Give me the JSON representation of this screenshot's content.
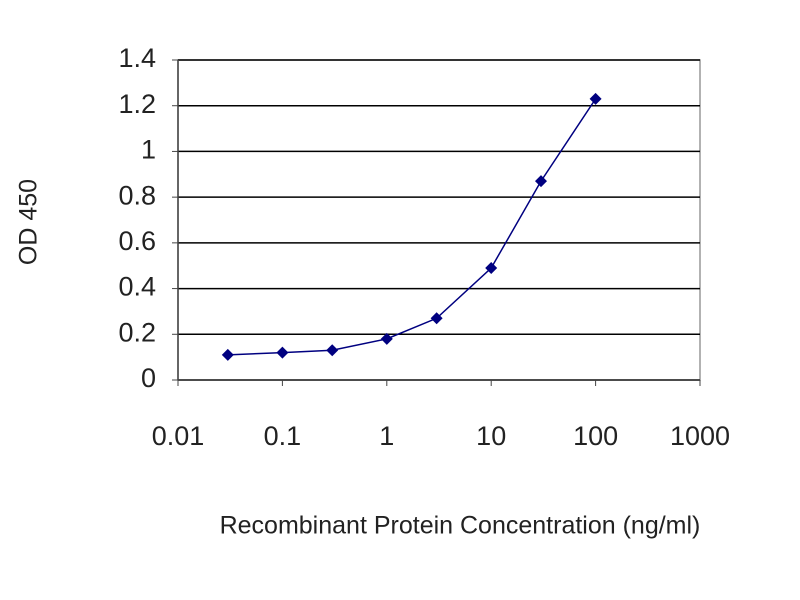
{
  "chart_data": {
    "type": "line",
    "x_label": "Recombinant Protein Concentration (ng/ml)",
    "y_label": "OD 450",
    "x": [
      0.03,
      0.1,
      0.3,
      1,
      3,
      10,
      30,
      100
    ],
    "series": [
      {
        "color": "#000080",
        "values": [
          0.11,
          0.12,
          0.13,
          0.18,
          0.27,
          0.49,
          0.87,
          1.23
        ]
      }
    ],
    "xscale": "log",
    "xlim": [
      0.01,
      1000
    ],
    "xticks": [
      0.01,
      0.1,
      1,
      10,
      100,
      1000
    ],
    "ylim": [
      0,
      1.4
    ],
    "yticks": [
      0,
      0.2,
      0.4,
      0.6,
      0.8,
      1,
      1.2,
      1.4
    ],
    "grid": true
  }
}
